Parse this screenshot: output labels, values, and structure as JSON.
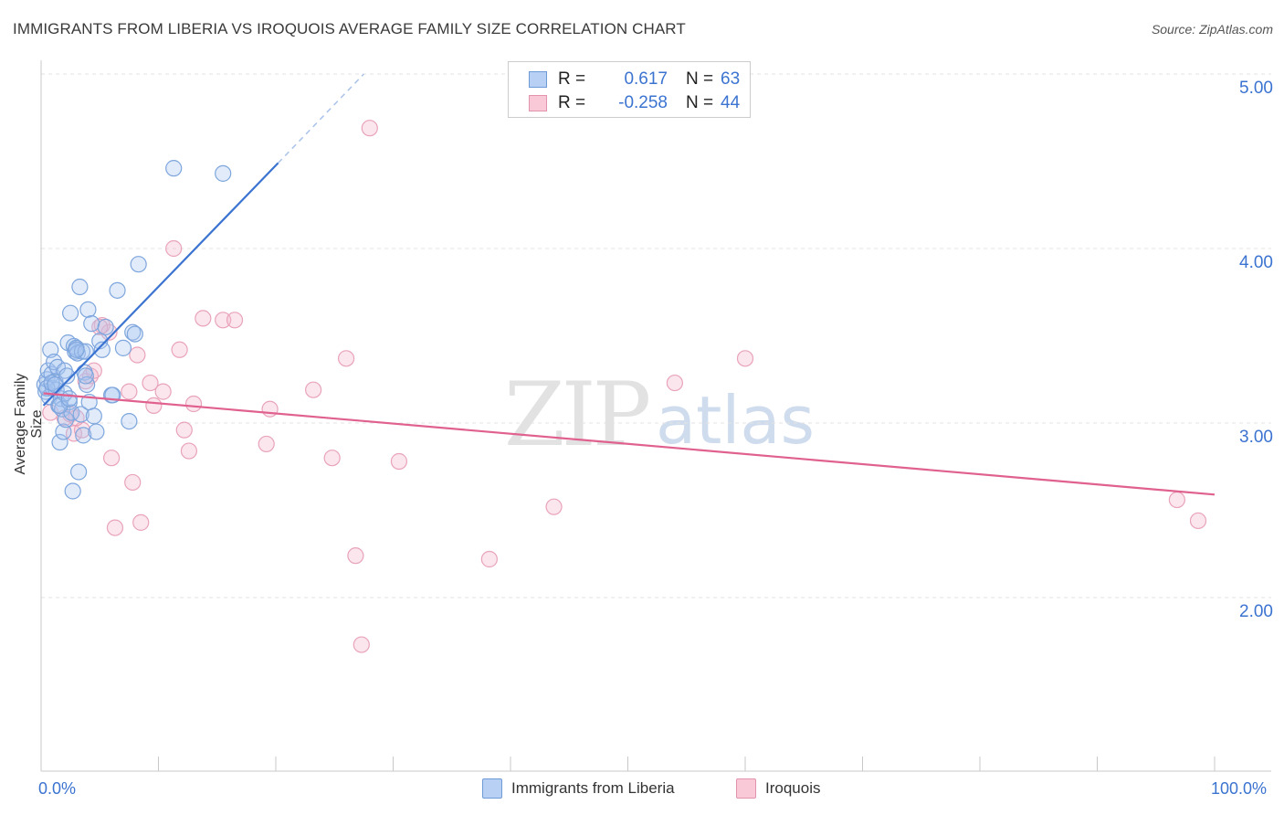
{
  "title": "IMMIGRANTS FROM LIBERIA VS IROQUOIS AVERAGE FAMILY SIZE CORRELATION CHART",
  "source": "Source: ZipAtlas.com",
  "watermark": {
    "zip": "ZIP",
    "atlas": "atlas"
  },
  "colors": {
    "blue": "#3b73d1",
    "blue_fill": "#a8c6f0",
    "pink": "#e0608e",
    "pink_fill": "#f4b8ca",
    "grid": "#e3e3e3"
  },
  "legend": {
    "rows": [
      {
        "r_label": "R =",
        "r_value": "0.617",
        "n_label": "N =",
        "n_value": "63"
      },
      {
        "r_label": "R =",
        "r_value": "-0.258",
        "n_label": "N =",
        "n_value": "44"
      }
    ]
  },
  "bottom_legend": [
    "Immigrants from Liberia",
    "Iroquois"
  ],
  "chart_data": {
    "type": "scatter",
    "title": "IMMIGRANTS FROM LIBERIA VS IROQUOIS AVERAGE FAMILY SIZE CORRELATION CHART",
    "xlabel": "",
    "ylabel": "Average Family Size",
    "x_tick_labels": [
      "0.0%",
      "100.0%"
    ],
    "y_tick_labels": [
      "2.00",
      "3.00",
      "4.00",
      "5.00"
    ],
    "xlim": [
      0,
      100
    ],
    "ylim": [
      1.05,
      5.1
    ],
    "series": [
      {
        "name": "Immigrants from Liberia",
        "trend": {
          "x0": 0.2,
          "y0": 3.1,
          "x1": 20.2,
          "y1": 4.49,
          "dash_to_x": 27.5,
          "dash_to_y": 5.0
        },
        "points": [
          [
            0.3,
            3.22
          ],
          [
            0.4,
            3.18
          ],
          [
            0.5,
            3.25
          ],
          [
            0.6,
            3.3
          ],
          [
            0.7,
            3.15
          ],
          [
            0.8,
            3.42
          ],
          [
            0.9,
            3.28
          ],
          [
            1.0,
            3.2
          ],
          [
            1.1,
            3.35
          ],
          [
            1.2,
            3.24
          ],
          [
            1.3,
            3.19
          ],
          [
            1.4,
            3.32
          ],
          [
            1.5,
            3.1
          ],
          [
            1.6,
            2.89
          ],
          [
            1.7,
            3.14
          ],
          [
            1.8,
            3.08
          ],
          [
            1.9,
            2.95
          ],
          [
            2.0,
            3.3
          ],
          [
            2.1,
            3.02
          ],
          [
            2.2,
            3.27
          ],
          [
            2.3,
            3.46
          ],
          [
            2.4,
            3.12
          ],
          [
            2.5,
            3.63
          ],
          [
            2.6,
            3.06
          ],
          [
            2.7,
            2.61
          ],
          [
            2.8,
            3.44
          ],
          [
            2.9,
            3.41
          ],
          [
            3.0,
            3.43
          ],
          [
            3.1,
            3.4
          ],
          [
            3.2,
            2.72
          ],
          [
            3.3,
            3.78
          ],
          [
            3.4,
            3.05
          ],
          [
            3.5,
            3.41
          ],
          [
            3.6,
            2.93
          ],
          [
            3.7,
            3.29
          ],
          [
            3.8,
            3.41
          ],
          [
            3.9,
            3.22
          ],
          [
            4.0,
            3.65
          ],
          [
            4.1,
            3.12
          ],
          [
            4.3,
            3.57
          ],
          [
            4.5,
            3.04
          ],
          [
            4.7,
            2.95
          ],
          [
            5.0,
            3.47
          ],
          [
            5.2,
            3.42
          ],
          [
            5.5,
            3.55
          ],
          [
            6.0,
            3.16
          ],
          [
            6.5,
            3.76
          ],
          [
            7.0,
            3.43
          ],
          [
            7.5,
            3.01
          ],
          [
            7.8,
            3.52
          ],
          [
            8.0,
            3.51
          ],
          [
            8.3,
            3.91
          ],
          [
            11.3,
            4.46
          ],
          [
            15.5,
            4.43
          ],
          [
            0.5,
            3.2
          ],
          [
            0.9,
            3.23
          ],
          [
            1.2,
            3.22
          ],
          [
            1.6,
            3.1
          ],
          [
            2.0,
            3.17
          ],
          [
            2.4,
            3.14
          ],
          [
            3.0,
            3.42
          ],
          [
            3.8,
            3.27
          ],
          [
            6.1,
            3.16
          ]
        ]
      },
      {
        "name": "Iroquois",
        "trend": {
          "x0": 0.2,
          "y0": 3.17,
          "x1": 100.0,
          "y1": 2.59
        },
        "points": [
          [
            0.8,
            3.06
          ],
          [
            2.0,
            3.03
          ],
          [
            2.5,
            3.05
          ],
          [
            2.8,
            2.94
          ],
          [
            3.5,
            2.96
          ],
          [
            3.8,
            3.24
          ],
          [
            4.2,
            3.27
          ],
          [
            4.5,
            3.3
          ],
          [
            5.2,
            3.56
          ],
          [
            5.8,
            3.52
          ],
          [
            6.0,
            2.8
          ],
          [
            6.3,
            2.4
          ],
          [
            7.5,
            3.18
          ],
          [
            7.8,
            2.66
          ],
          [
            8.2,
            3.39
          ],
          [
            8.5,
            2.43
          ],
          [
            9.3,
            3.23
          ],
          [
            9.6,
            3.1
          ],
          [
            10.4,
            3.18
          ],
          [
            11.3,
            4.0
          ],
          [
            11.8,
            3.42
          ],
          [
            12.2,
            2.96
          ],
          [
            12.6,
            2.84
          ],
          [
            13.0,
            3.11
          ],
          [
            13.8,
            3.6
          ],
          [
            15.5,
            3.59
          ],
          [
            16.5,
            3.59
          ],
          [
            19.2,
            2.88
          ],
          [
            19.5,
            3.08
          ],
          [
            23.2,
            3.19
          ],
          [
            24.8,
            2.8
          ],
          [
            26.0,
            3.37
          ],
          [
            26.8,
            2.24
          ],
          [
            27.3,
            1.73
          ],
          [
            28.0,
            4.69
          ],
          [
            30.5,
            2.78
          ],
          [
            38.2,
            2.22
          ],
          [
            43.7,
            2.52
          ],
          [
            54.0,
            3.23
          ],
          [
            60.0,
            3.37
          ],
          [
            96.8,
            2.56
          ],
          [
            98.6,
            2.44
          ],
          [
            5.0,
            3.55
          ],
          [
            3.0,
            3.03
          ]
        ]
      }
    ]
  }
}
